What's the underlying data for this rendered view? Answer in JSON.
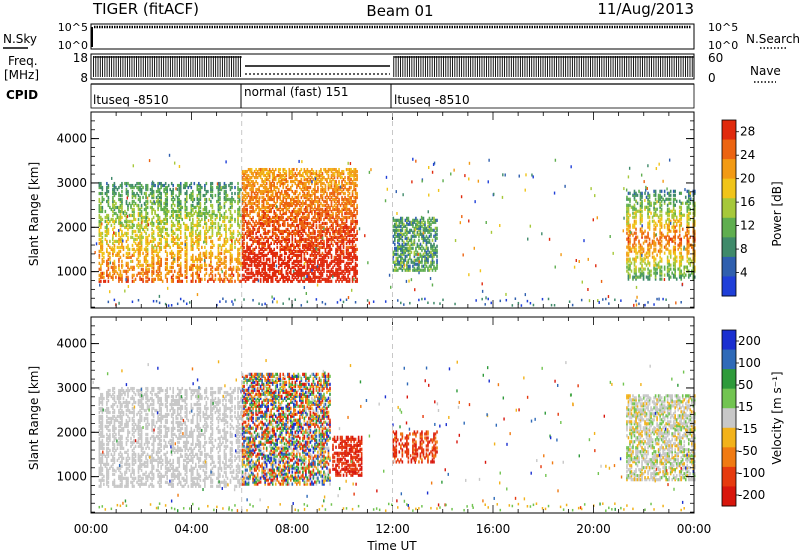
{
  "header": {
    "title": "TIGER (fitACF)",
    "beam": "Beam 01",
    "date": "11/Aug/2013"
  },
  "top_panels": {
    "nsky": {
      "left_label": "N.Sky",
      "left_ticks": [
        "10^5",
        "10^0"
      ],
      "right_label": "N.Search",
      "right_ticks": [
        "10^5",
        "10^0"
      ]
    },
    "freq": {
      "left_label_1": "Freq.",
      "left_label_2": "[MHz]",
      "left_ticks": [
        "18",
        "8"
      ],
      "right_label": "Nave",
      "right_ticks": [
        "60",
        "0"
      ]
    },
    "cpid": {
      "label": "CPID",
      "segments": [
        {
          "label": "ltuseq -8510",
          "start": 0,
          "end": 6
        },
        {
          "label": "normal (fast) 151",
          "start": 6,
          "end": 12
        },
        {
          "label": "ltuseq -8510",
          "start": 12,
          "end": 24
        }
      ]
    }
  },
  "colors": {
    "power_scale": [
      "#1f3fd8",
      "#2f5fae",
      "#3f8a6a",
      "#5fae4f",
      "#a6c83a",
      "#f0c419",
      "#f29a14",
      "#ec6411",
      "#e02a0d"
    ],
    "velocity_scale": [
      "#1a2fd0",
      "#2f6ab8",
      "#2e9a3a",
      "#72c451",
      "#c8c8c8",
      "#f2b21a",
      "#f07a12",
      "#e63a0e",
      "#d8160c"
    ]
  },
  "chart_data": [
    {
      "type": "heatmap",
      "name": "power",
      "xlabel": "",
      "ylabel": "Slant Range [km]",
      "xlim": [
        0,
        24
      ],
      "ylim": [
        180,
        4600
      ],
      "yticks": [
        1000,
        2000,
        3000,
        4000
      ],
      "colorbar": {
        "label": "Power [dB]",
        "ticks": [
          "4",
          "8",
          "12",
          "16",
          "20",
          "24",
          "28"
        ],
        "range": [
          0,
          30
        ]
      },
      "regions": [
        {
          "x": [
            0.3,
            6.0
          ],
          "range_km": [
            750,
            3000
          ],
          "value_dB": "banded 8-22 (stronger near 1000-1500 km)"
        },
        {
          "x": [
            6.0,
            10.6
          ],
          "range_km": [
            750,
            3300
          ],
          "value_dB": "18-28 (strongest near 900-1400 km)"
        },
        {
          "x": [
            12.0,
            13.8
          ],
          "range_km": [
            1000,
            2200
          ],
          "value_dB": "8-16"
        },
        {
          "x": [
            21.3,
            24.0
          ],
          "range_km": [
            800,
            2800
          ],
          "value_dB": "8-24"
        }
      ]
    },
    {
      "type": "heatmap",
      "name": "velocity",
      "xlabel": "Time UT",
      "ylabel": "Slant Range [km]",
      "xlim": [
        0,
        24
      ],
      "ylim": [
        180,
        4600
      ],
      "xticks": [
        "00:00",
        "04:00",
        "08:00",
        "12:00",
        "16:00",
        "20:00",
        "00:00"
      ],
      "yticks": [
        1000,
        2000,
        3000,
        4000
      ],
      "colorbar": {
        "label": "Velocity [m s⁻¹]",
        "ticks": [
          "200",
          "100",
          "50",
          "15",
          "-15",
          "-50",
          "-100",
          "-200"
        ]
      },
      "regions": [
        {
          "x": [
            0.3,
            6.0
          ],
          "range_km": [
            750,
            3000
          ],
          "value_ms": "-15 to 15 (ground scatter)"
        },
        {
          "x": [
            6.0,
            9.5
          ],
          "range_km": [
            800,
            3300
          ],
          "value_ms": "mixed -100 to 200"
        },
        {
          "x": [
            9.6,
            10.8
          ],
          "range_km": [
            1000,
            1900
          ],
          "value_ms": "-100 to -200"
        },
        {
          "x": [
            12.0,
            13.8
          ],
          "range_km": [
            1300,
            2000
          ],
          "value_ms": "-50 to -100"
        },
        {
          "x": [
            21.3,
            24.0
          ],
          "range_km": [
            900,
            2800
          ],
          "value_ms": "-15 to 50"
        }
      ]
    }
  ]
}
